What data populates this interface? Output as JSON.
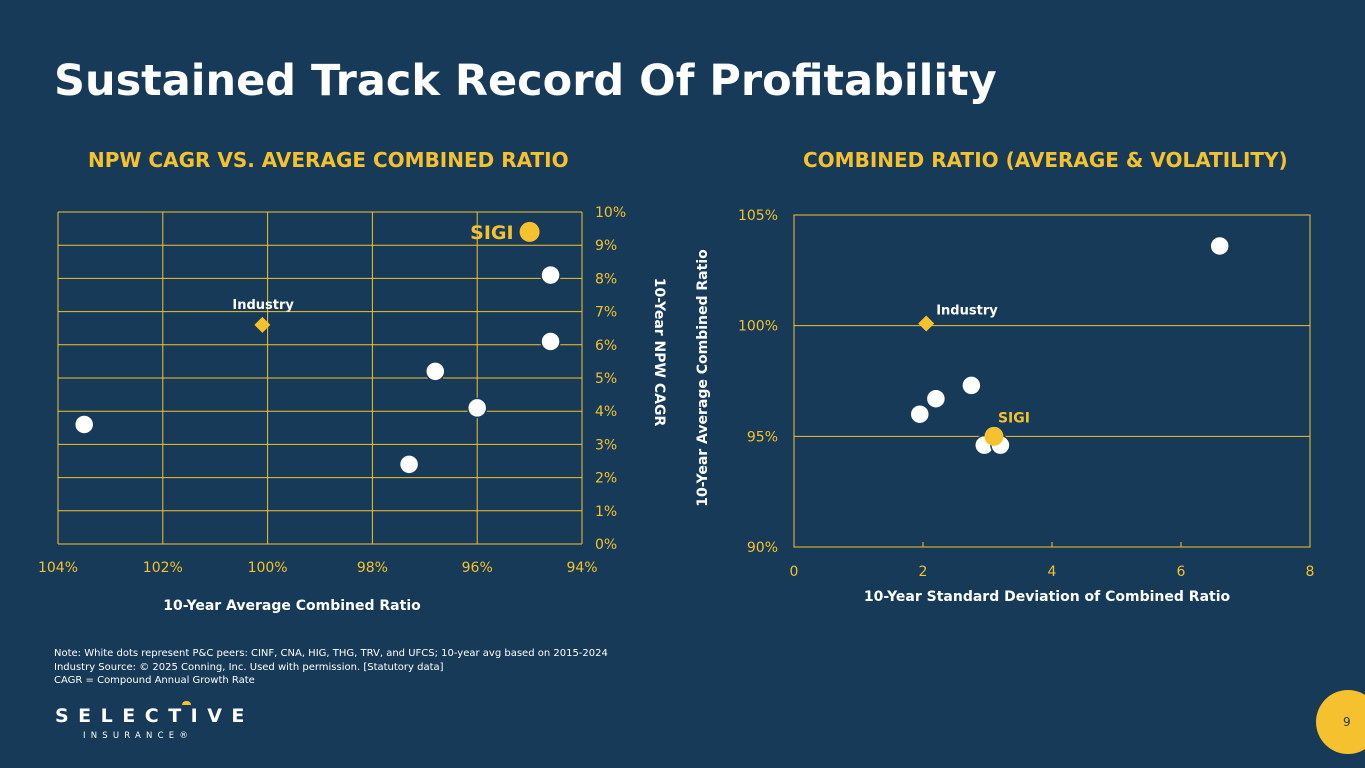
{
  "slide": {
    "title": "Sustained Track Record Of Profitability",
    "page_number": "9"
  },
  "colors": {
    "background": "#163a57",
    "accent": "#f5c12e",
    "peer": "#ffffff"
  },
  "chart_data": [
    {
      "type": "scatter",
      "title": "NPW CAGR VS. AVERAGE COMBINED RATIO",
      "xlabel": "10-Year Average Combined Ratio",
      "ylabel": "10-Year NPW CAGR",
      "xlim": [
        104,
        94
      ],
      "ylim": [
        0,
        10
      ],
      "x_ticks": [
        "104%",
        "102%",
        "100%",
        "98%",
        "96%",
        "94%"
      ],
      "y_ticks": [
        "0%",
        "1%",
        "2%",
        "3%",
        "4%",
        "5%",
        "6%",
        "7%",
        "8%",
        "9%",
        "10%"
      ],
      "y_axis_side": "right",
      "grid": true,
      "series": [
        {
          "name": "Peers",
          "color": "#ffffff",
          "points": [
            [
              103.5,
              3.6
            ],
            [
              97.3,
              2.4
            ],
            [
              96.8,
              5.2
            ],
            [
              96.0,
              4.1
            ],
            [
              94.6,
              8.1
            ],
            [
              94.6,
              6.1
            ]
          ]
        },
        {
          "name": "Industry",
          "color": "#f5c12e",
          "marker": "diamond",
          "label": "Industry",
          "points": [
            [
              100.1,
              6.6
            ]
          ]
        },
        {
          "name": "SIGI",
          "color": "#f5c12e",
          "marker": "circle",
          "label": "SIGI",
          "points": [
            [
              95.0,
              9.4
            ]
          ]
        }
      ]
    },
    {
      "type": "scatter",
      "title": "COMBINED RATIO  (AVERAGE & VOLATILITY)",
      "xlabel": "10-Year Standard Deviation of Combined Ratio",
      "ylabel": "10-Year Average Combined Ratio",
      "xlim": [
        0,
        8
      ],
      "ylim": [
        90,
        105
      ],
      "x_ticks": [
        "0",
        "2",
        "4",
        "6",
        "8"
      ],
      "y_ticks": [
        "90%",
        "95%",
        "100%",
        "105%"
      ],
      "grid": true,
      "series": [
        {
          "name": "Peers",
          "color": "#ffffff",
          "points": [
            [
              1.95,
              96.0
            ],
            [
              2.2,
              96.7
            ],
            [
              2.75,
              97.3
            ],
            [
              2.95,
              94.6
            ],
            [
              3.2,
              94.6
            ],
            [
              6.6,
              103.6
            ]
          ]
        },
        {
          "name": "Industry",
          "color": "#f5c12e",
          "marker": "diamond",
          "label": "Industry",
          "points": [
            [
              2.05,
              100.1
            ]
          ]
        },
        {
          "name": "SIGI",
          "color": "#f5c12e",
          "marker": "circle",
          "label": "SIGI",
          "points": [
            [
              3.1,
              95.0
            ]
          ]
        }
      ]
    }
  ],
  "notes": [
    "Note: White dots represent P&C peers: CINF, CNA, HIG, THG, TRV, and UFCS; 10-year avg based on 2015-2024",
    "Industry Source:  © 2025 Conning, Inc. Used with permission. [Statutory data]",
    "CAGR = Compound Annual Growth Rate"
  ],
  "logo": {
    "name": "SELECTIVE",
    "subtitle": "INSURANCE®"
  }
}
